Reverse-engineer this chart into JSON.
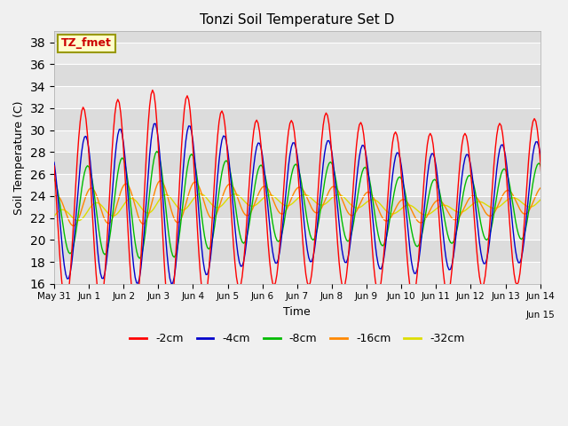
{
  "title": "Tonzi Soil Temperature Set D",
  "ylabel": "Soil Temperature (C)",
  "xlabel": "Time",
  "legend_label": "TZ_fmet",
  "series_labels": [
    "-2cm",
    "-4cm",
    "-8cm",
    "-16cm",
    "-32cm"
  ],
  "series_colors": [
    "#ff0000",
    "#0000cc",
    "#00bb00",
    "#ff8800",
    "#dddd00"
  ],
  "ylim": [
    16,
    39
  ],
  "yticks": [
    16,
    18,
    20,
    22,
    24,
    26,
    28,
    30,
    32,
    34,
    36,
    38
  ],
  "fig_bg": "#f0f0f0",
  "plot_bg": "#dcdcdc",
  "stripe_color": "#e8e8e8",
  "n_days": 15,
  "peak_hour": 14,
  "xtick_positions": [
    0,
    24,
    48,
    72,
    96,
    120,
    144,
    168,
    192,
    216,
    240,
    264,
    288,
    312,
    336
  ],
  "xtick_labels": [
    "May 31",
    "Jun 1",
    "Jun 2",
    "Jun 3",
    "Jun 4",
    "Jun 5",
    "Jun 6",
    "Jun 7",
    "Jun 8",
    "Jun 9",
    "Jun 10",
    "Jun 11",
    "Jun 12",
    "Jun 13",
    "Jun 14"
  ],
  "xtick_last": "Jun 15",
  "mean_base": 23.5,
  "mean_drift": [
    -1.5,
    -1.2,
    -0.9,
    -0.7,
    -0.5,
    -0.3,
    -0.2,
    -0.1,
    0.0,
    -0.3,
    -0.8,
    -0.8,
    -0.5,
    -0.2,
    -0.1
  ],
  "amp_2cm": [
    8.5,
    9.0,
    9.5,
    10.5,
    9.5,
    8.0,
    7.5,
    7.5,
    8.0,
    7.5,
    7.5,
    7.5,
    7.0,
    7.5,
    7.5
  ],
  "amp_4cm": [
    6.0,
    6.5,
    7.0,
    7.5,
    7.0,
    6.0,
    5.5,
    5.5,
    5.5,
    5.5,
    5.5,
    5.5,
    5.0,
    5.5,
    5.5
  ],
  "amp_8cm": [
    3.5,
    4.0,
    4.5,
    5.0,
    4.5,
    3.8,
    3.5,
    3.5,
    3.5,
    3.5,
    3.2,
    3.0,
    3.0,
    3.2,
    3.5
  ],
  "amp_16cm": [
    1.5,
    1.6,
    1.8,
    2.0,
    1.8,
    1.5,
    1.3,
    1.2,
    1.2,
    1.2,
    1.1,
    1.0,
    1.0,
    1.1,
    1.2
  ],
  "amp_32cm": [
    0.6,
    0.7,
    0.7,
    0.8,
    0.7,
    0.6,
    0.5,
    0.5,
    0.5,
    0.5,
    0.5,
    0.4,
    0.4,
    0.4,
    0.5
  ],
  "phase_2cm": 0.0,
  "phase_4cm": 1.5,
  "phase_8cm": 3.0,
  "phase_16cm": 5.5,
  "phase_32cm": 9.0,
  "mean_offset_2cm": [
    0.5,
    1.0,
    0.8,
    0.5,
    0.5,
    0.3,
    0.0,
    0.0,
    0.2,
    -0.2,
    -0.5,
    -0.5,
    -0.3,
    0.0,
    0.2
  ],
  "mean_offset_4cm": [
    0.3,
    0.8,
    0.6,
    0.4,
    0.4,
    0.2,
    0.0,
    0.0,
    0.1,
    -0.1,
    -0.3,
    -0.3,
    -0.2,
    0.0,
    0.1
  ],
  "mean_offset_8cm": [
    0.2,
    0.5,
    0.4,
    0.3,
    0.3,
    0.2,
    0.0,
    0.0,
    0.1,
    -0.1,
    -0.2,
    -0.2,
    -0.1,
    0.0,
    0.1
  ],
  "mean_offset_16cm": [
    0.5,
    0.8,
    0.7,
    0.6,
    0.5,
    0.4,
    0.3,
    0.2,
    0.2,
    0.0,
    -0.1,
    -0.1,
    0.0,
    0.1,
    0.2
  ],
  "mean_offset_32cm": [
    0.0,
    0.3,
    0.4,
    0.5,
    0.5,
    0.4,
    0.3,
    0.2,
    0.2,
    0.1,
    0.0,
    0.0,
    0.0,
    0.1,
    0.1
  ]
}
